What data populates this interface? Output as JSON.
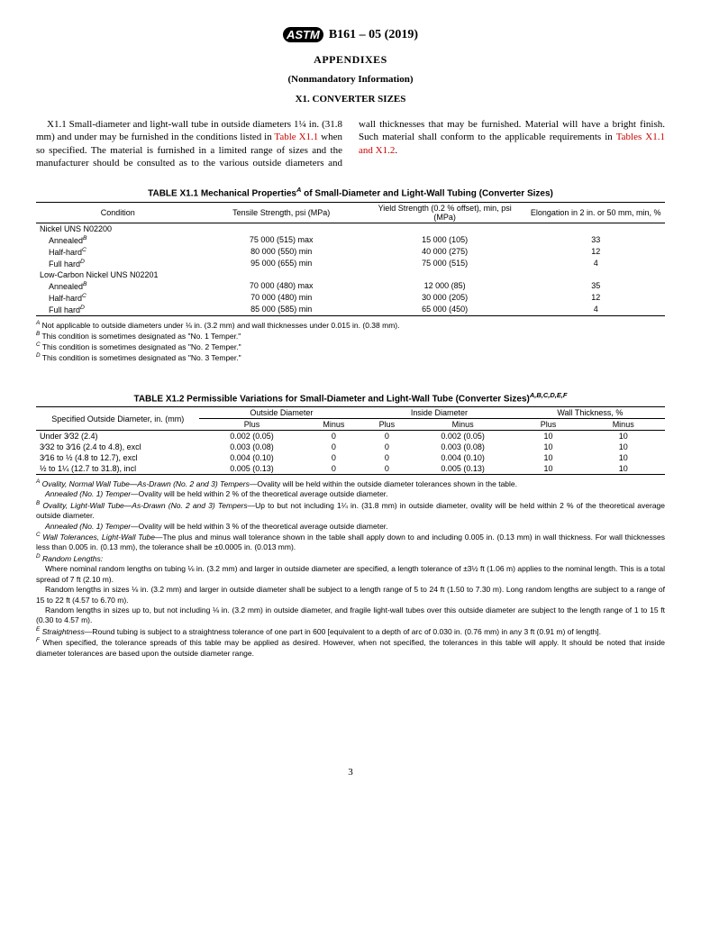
{
  "header": {
    "logo_text": "ASTM",
    "designation": "B161 – 05 (2019)",
    "appendixes": "APPENDIXES",
    "nonmandatory": "(Nonmandatory Information)",
    "section": "X1.  CONVERTER SIZES"
  },
  "para": {
    "lead": "X1.1 Small-diameter and light-wall tube in outside diameters 1¼ in. (31.8 mm) and under may be furnished in the conditions listed in ",
    "link1": "Table X1.1",
    "mid": " when so specified. The material is furnished in a limited range of sizes and the manufacturer should be consulted as to the various outside diameters and wall thicknesses that may be furnished. Material will have a bright finish. Such material shall conform to the applicable requirements in ",
    "link2": "Tables X1.1 and X1.2",
    "tail": "."
  },
  "table1": {
    "caption_pre": "TABLE X1.1 Mechanical Properties",
    "caption_sup": "A",
    "caption_post": " of Small-Diameter and Light-Wall Tubing (Converter Sizes)",
    "head": {
      "condition": "Condition",
      "tensile": "Tensile Strength, psi (MPa)",
      "yield": "Yield Strength (0.2 % offset), min, psi (MPa)",
      "elong": "Elongation in 2 in. or 50 mm, min, %"
    },
    "group1": "Nickel UNS N02200",
    "group2": "Low-Carbon Nickel UNS N02201",
    "rows1": [
      {
        "cond": "Annealed",
        "sup": "B",
        "tensile": "75 000 (515) max",
        "yield": "15 000 (105)",
        "elong": "33"
      },
      {
        "cond": "Half-hard",
        "sup": "C",
        "tensile": "80 000 (550) min",
        "yield": "40 000 (275)",
        "elong": "12"
      },
      {
        "cond": "Full hard",
        "sup": "D",
        "tensile": "95 000 (655) min",
        "yield": "75 000 (515)",
        "elong": "4"
      }
    ],
    "rows2": [
      {
        "cond": "Annealed",
        "sup": "B",
        "tensile": "70 000 (480) max",
        "yield": "12 000 (85)",
        "elong": "35"
      },
      {
        "cond": "Half-hard",
        "sup": "C",
        "tensile": "70 000 (480) min",
        "yield": "30 000 (205)",
        "elong": "12"
      },
      {
        "cond": "Full hard",
        "sup": "D",
        "tensile": "85 000 (585) min",
        "yield": "65 000 (450)",
        "elong": "4"
      }
    ],
    "footnotes": {
      "A": " Not applicable to outside diameters under ⅛ in. (3.2 mm) and wall thicknesses under 0.015 in. (0.38 mm).",
      "B": " This condition is sometimes designated as \"No. 1 Temper.\"",
      "C": " This condition is sometimes designated as \"No. 2 Temper.\"",
      "D": " This condition is sometimes designated as \"No. 3 Temper.\""
    }
  },
  "table2": {
    "caption_pre": "TABLE X1.2 Permissible Variations for Small-Diameter and Light-Wall Tube (Converter Sizes)",
    "caption_sup": "A,B,C,D,E,F",
    "head": {
      "spec": "Specified Outside Diameter, in. (mm)",
      "od": "Outside Diameter",
      "id": "Inside Diameter",
      "wall": "Wall Thickness, %",
      "plus": "Plus",
      "minus": "Minus"
    },
    "rows": [
      {
        "spec": "Under 3⁄32 (2.4)",
        "odp": "0.002 (0.05)",
        "odm": "0",
        "idp": "0",
        "idm": "0.002 (0.05)",
        "wp": "10",
        "wm": "10"
      },
      {
        "spec": "3⁄32 to 3⁄16 (2.4 to 4.8), excl",
        "odp": "0.003 (0.08)",
        "odm": "0",
        "idp": "0",
        "idm": "0.003 (0.08)",
        "wp": "10",
        "wm": "10"
      },
      {
        "spec": "3⁄16 to ½ (4.8 to 12.7), excl",
        "odp": "0.004 (0.10)",
        "odm": "0",
        "idp": "0",
        "idm": "0.004 (0.10)",
        "wp": "10",
        "wm": "10"
      },
      {
        "spec": "½ to 1¼ (12.7 to 31.8), incl",
        "odp": "0.005 (0.13)",
        "odm": "0",
        "idp": "0",
        "idm": "0.005 (0.13)",
        "wp": "10",
        "wm": "10"
      }
    ],
    "footnotes": {
      "A_lead": " Ovality, Normal Wall Tube—As-Drawn (No. 2 and 3) Tempers",
      "A_body": "—Ovality will be held within the outside diameter tolerances shown in the table.",
      "A_ann_lead": "Annealed (No. 1) Temper",
      "A_ann_body": "—Ovality will be held within 2 % of the theoretical average outside diameter.",
      "B_lead": " Ovality, Light-Wall Tube—As-Drawn (No. 2 and 3) Tempers",
      "B_body": "—Up to but not including 1¼ in. (31.8 mm) in outside diameter, ovality will be held within 2 % of the theoretical average outside diameter.",
      "B_ann_lead": "Annealed (No. 1) Temper",
      "B_ann_body": "—Ovality will be held within 3 % of the theoretical average outside diameter.",
      "C_lead": " Wall Tolerances, Light-Wall Tube",
      "C_body": "—The plus and minus wall tolerance shown in the table shall apply down to and including 0.005 in. (0.13 mm) in wall thickness. For wall thicknesses less than 0.005 in. (0.13 mm), the tolerance shall be ±0.0005 in. (0.013 mm).",
      "D_lead": " Random Lengths:",
      "D_p1": "Where nominal random lengths on tubing ⅛ in. (3.2 mm) and larger in outside diameter are specified, a length tolerance of ±3½ ft (1.06 m) applies to the nominal length. This is a total spread of 7 ft (2.10 m).",
      "D_p2": "Random lengths in sizes ⅛ in. (3.2 mm) and larger in outside diameter shall be subject to a length range of 5 to 24 ft (1.50 to 7.30 m). Long random lengths are subject to a range of 15 to 22 ft (4.57 to 6.70 m).",
      "D_p3": "Random lengths in sizes up to, but not including ⅛ in. (3.2 mm) in outside diameter, and fragile light-wall tubes over this outside diameter are subject to the length range of 1 to 15 ft (0.30 to 4.57 m).",
      "E_lead": " Straightness",
      "E_body": "—Round tubing is subject to a straightness tolerance of one part in 600 [equivalent to a depth of arc of 0.030 in. (0.76 mm) in any 3 ft (0.91 m) of length].",
      "F_body": " When specified, the tolerance spreads of this table may be applied as desired. However, when not specified, the tolerances in this table will apply. It should be noted that inside diameter tolerances are based upon the outside diameter range."
    }
  },
  "page_num": "3"
}
